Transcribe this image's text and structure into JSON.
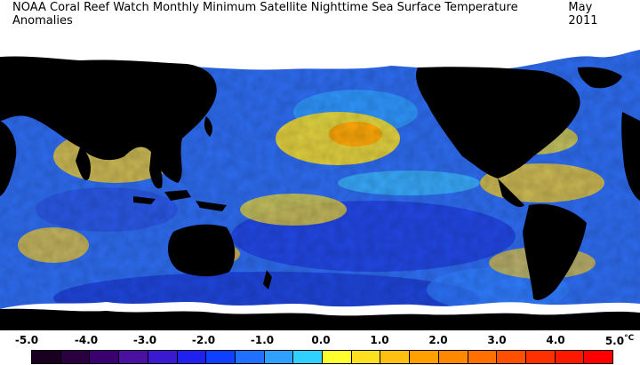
{
  "title": {
    "main": "NOAA Coral Reef Watch Monthly Minimum Satellite Nighttime Sea Surface Temperature Anomalies",
    "date": "May 2011"
  },
  "colorbar": {
    "ticks": [
      "-5.0",
      "-4.0",
      "-3.0",
      "-2.0",
      "-1.0",
      "0.0",
      "1.0",
      "2.0",
      "3.0",
      "4.0",
      "5.0"
    ],
    "unit": "°C",
    "colors": [
      "#1a0020",
      "#2a0040",
      "#3a0070",
      "#4a10a0",
      "#3a1ad0",
      "#2020f0",
      "#1040ff",
      "#2070ff",
      "#30a0ff",
      "#30d0ff",
      "#ffff30",
      "#ffe020",
      "#ffc010",
      "#ffa000",
      "#ff8800",
      "#ff7000",
      "#ff5000",
      "#ff3000",
      "#ff1800",
      "#ff0000"
    ]
  },
  "map": {
    "ocean_color": "#3a78f0",
    "land_color": "#000000",
    "ice_color": "#ffffff"
  }
}
